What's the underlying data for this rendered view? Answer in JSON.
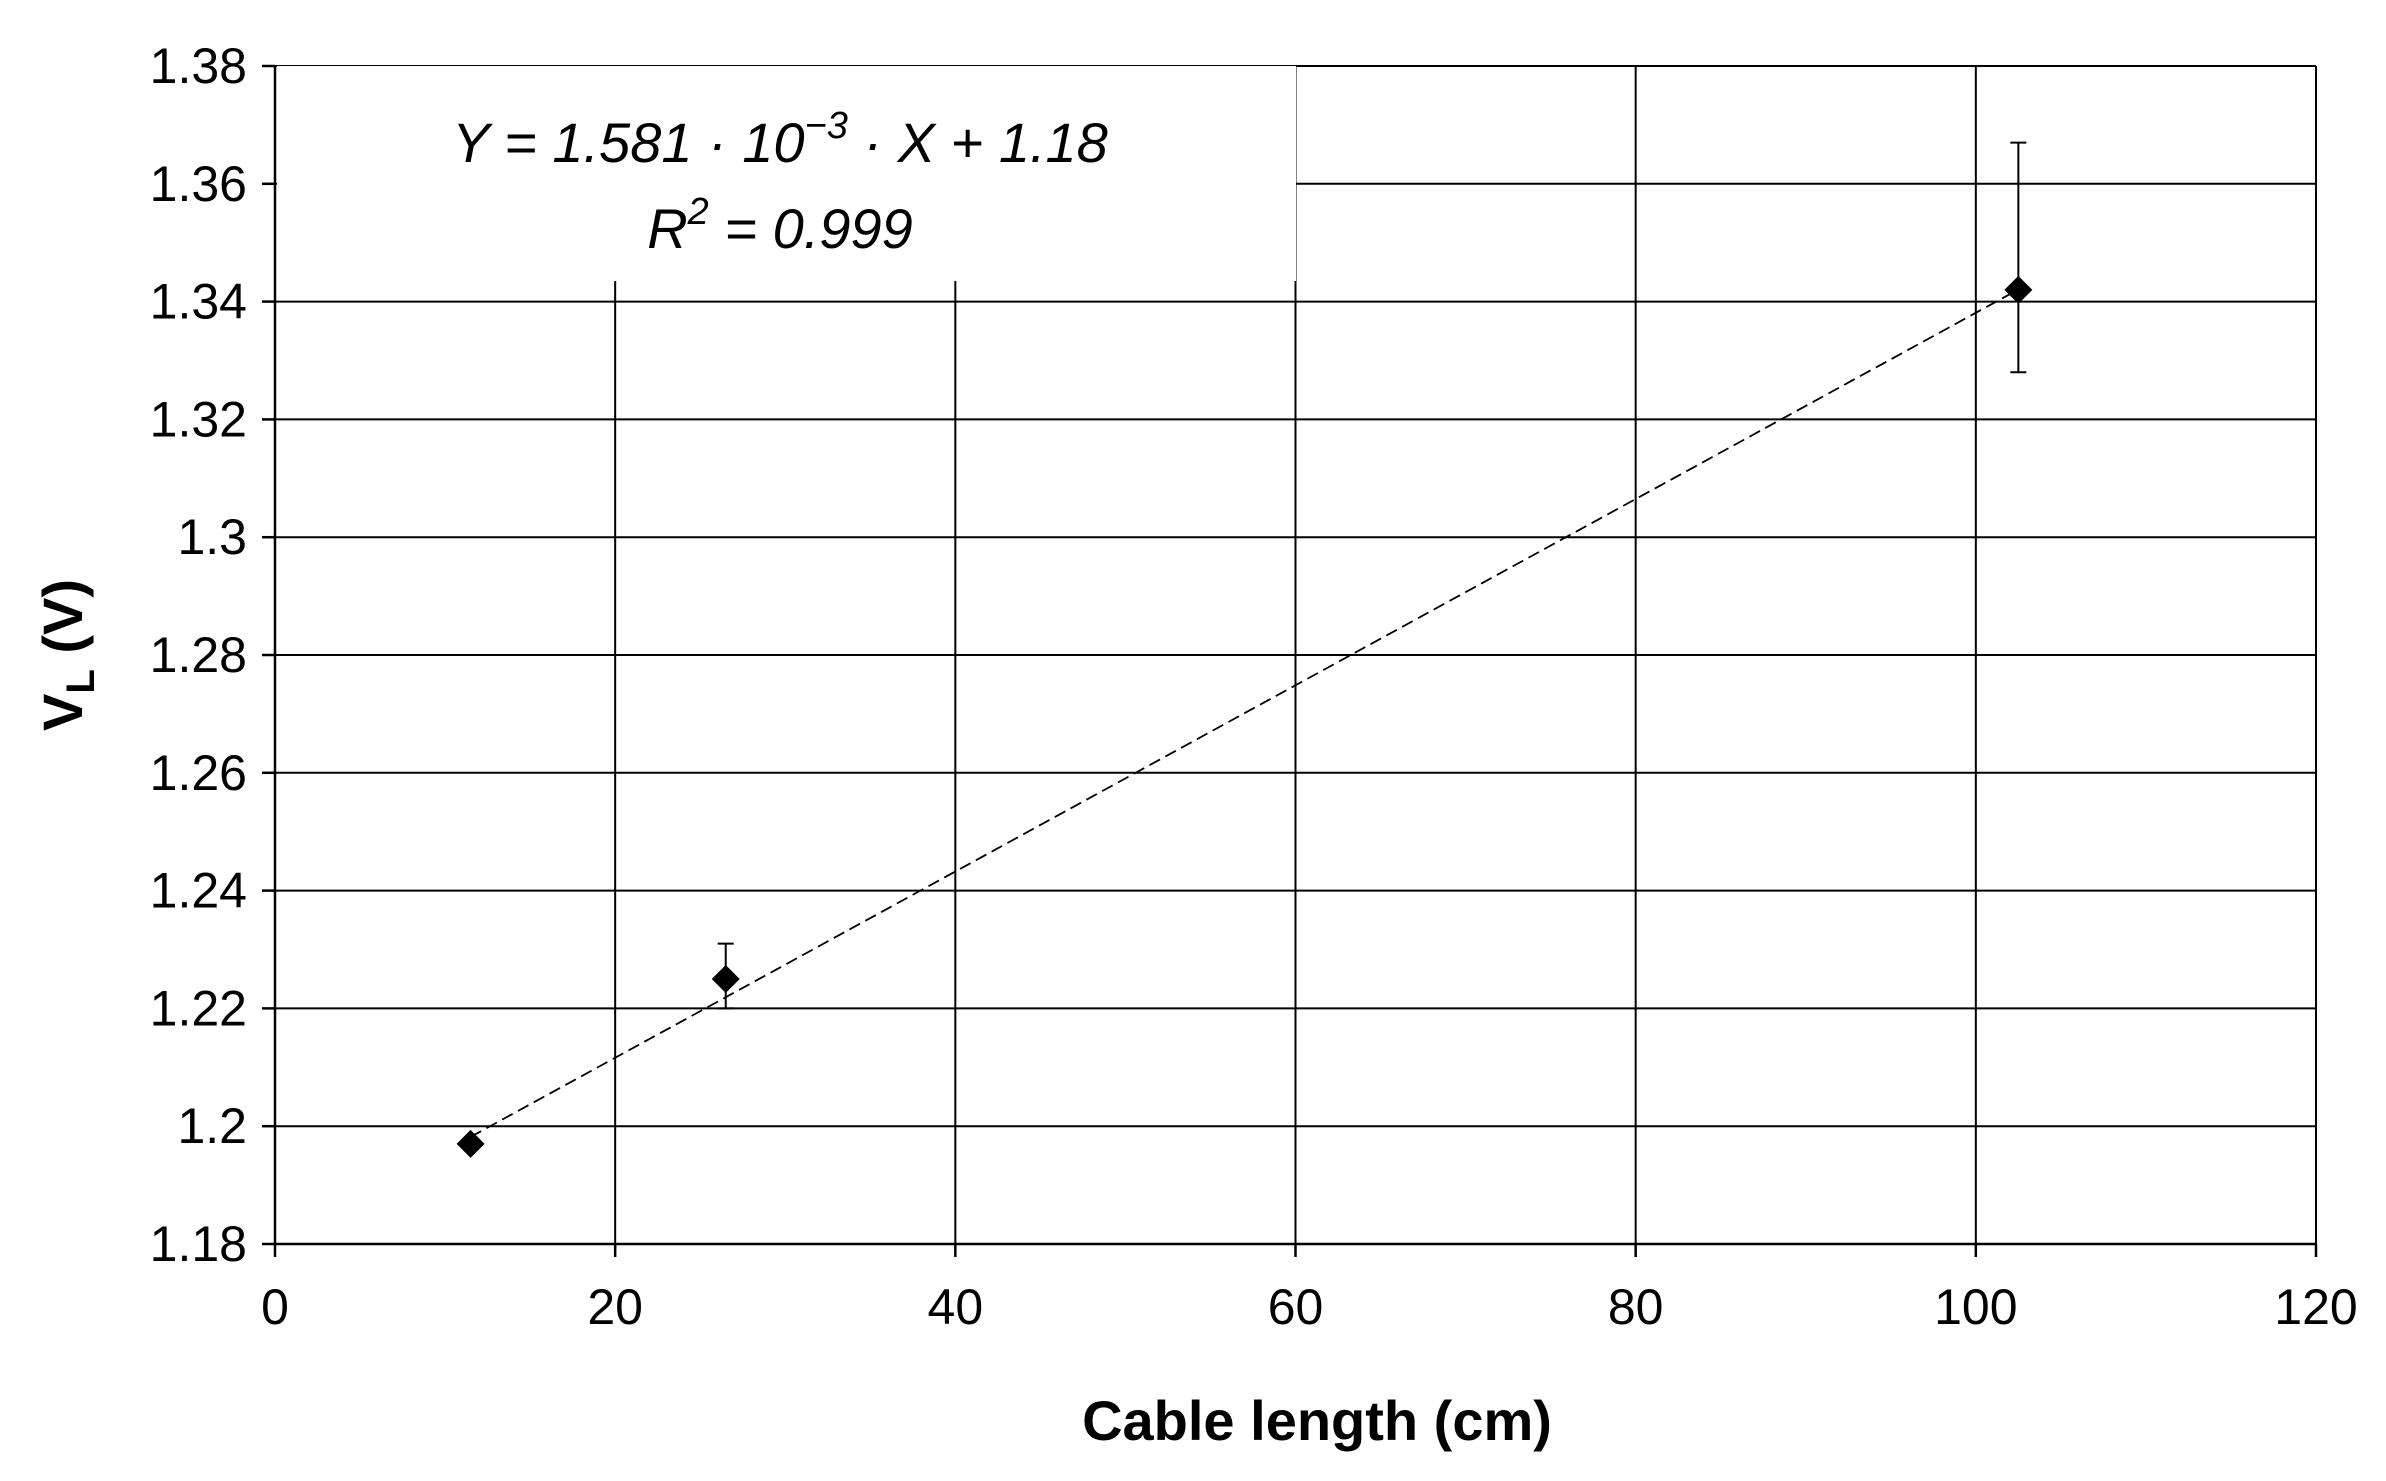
{
  "chart_data": {
    "type": "scatter",
    "xlabel": "Cable length (cm)",
    "ylabel": {
      "main": "V",
      "subscript": "L",
      "unit": " (V)"
    },
    "xlim": [
      0,
      120
    ],
    "ylim": [
      1.18,
      1.38
    ],
    "x_ticks": [
      0,
      20,
      40,
      60,
      80,
      100,
      120
    ],
    "y_ticks": [
      1.18,
      1.2,
      1.22,
      1.24,
      1.26,
      1.28,
      1.3,
      1.32,
      1.34,
      1.36,
      1.38
    ],
    "x_tick_labels": [
      "0",
      "20",
      "40",
      "60",
      "80",
      "100",
      "120"
    ],
    "y_tick_labels": [
      "1.18",
      "1.2",
      "1.22",
      "1.24",
      "1.26",
      "1.28",
      "1.3",
      "1.32",
      "1.34",
      "1.36",
      "1.38"
    ],
    "grid": true,
    "series": [
      {
        "marker": "diamond",
        "points": [
          {
            "x": 11.5,
            "y": 1.197,
            "err_low": 0.0,
            "err_high": 0.0
          },
          {
            "x": 26.5,
            "y": 1.225,
            "err_low": 0.005,
            "err_high": 0.006
          },
          {
            "x": 102.5,
            "y": 1.342,
            "err_low": 0.014,
            "err_high": 0.025
          }
        ]
      }
    ],
    "trendline": {
      "style": "dashed",
      "slope": 0.001581,
      "intercept": 1.18,
      "x_range": [
        11.5,
        102.5
      ]
    },
    "annotation": {
      "equation": {
        "lhs": "Y = 1.581 · 10",
        "exponent": "−3",
        "rhs": " · X + 1.18"
      },
      "r_squared": {
        "prefix": "R",
        "exponent": "2",
        "suffix": " = 0.999"
      },
      "placement": "top-left"
    }
  }
}
